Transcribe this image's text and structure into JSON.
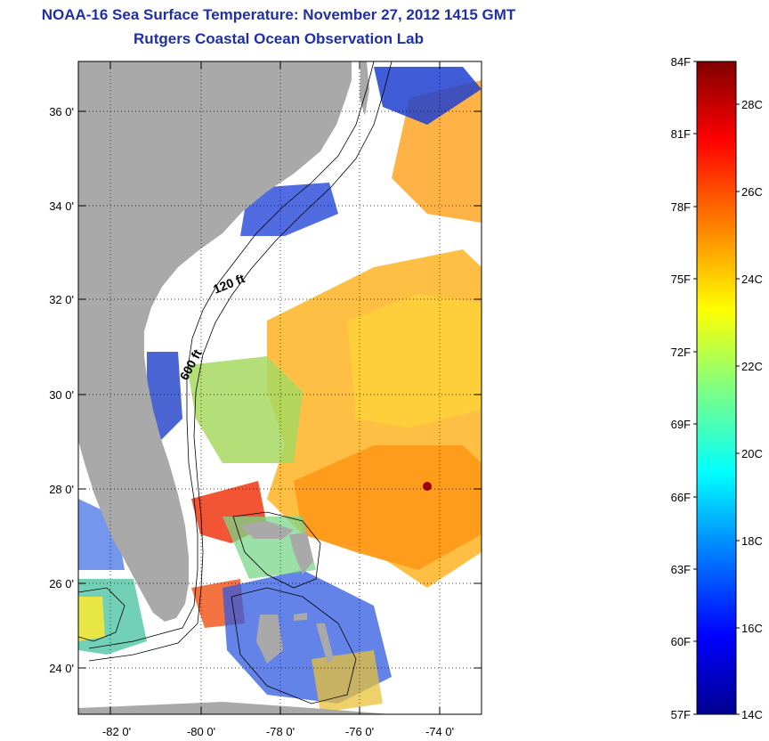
{
  "title": "NOAA-16 Sea Surface Temperature:  November 27, 2012 1415 GMT",
  "subtitle": "Rutgers Coastal Ocean Observation Lab",
  "map": {
    "latitude_labels": [
      "36 0'",
      "34 0'",
      "32 0'",
      "30 0'",
      "28 0'",
      "26 0'",
      "24 0'"
    ],
    "longitude_labels": [
      "-82 0'",
      "-80 0'",
      "-78 0'",
      "-76 0'",
      "-74 0'"
    ],
    "isobath_labels": [
      "120 ft",
      "600 ft"
    ],
    "land_color": "#a9a9a9",
    "grid": "dotted"
  },
  "colorbar": {
    "fahrenheit_labels": [
      "84F",
      "81F",
      "78F",
      "75F",
      "72F",
      "69F",
      "66F",
      "63F",
      "60F",
      "57F"
    ],
    "celsius_labels": [
      "28C",
      "26C",
      "24C",
      "22C",
      "20C",
      "18C",
      "16C",
      "14C"
    ],
    "colormap": [
      "#00008f",
      "#0000ff",
      "#0080ff",
      "#00ffff",
      "#80ff80",
      "#ffff00",
      "#ff8000",
      "#ff0000",
      "#800000"
    ]
  }
}
